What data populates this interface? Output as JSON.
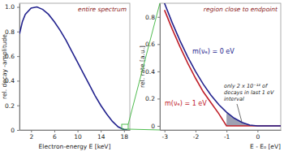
{
  "chart_data": [
    {
      "type": "line",
      "title": "entire spectrum",
      "x_label": "Electron-energy E [keV]",
      "y_label": "rel. decay -amplitude",
      "x": [
        0,
        0.5,
        1,
        2,
        3,
        4,
        5,
        6,
        7,
        8,
        9,
        10,
        11,
        12,
        13,
        14,
        15,
        16,
        17,
        18,
        18.6
      ],
      "values": [
        0.78,
        0.88,
        0.94,
        0.99,
        1.0,
        0.98,
        0.94,
        0.88,
        0.81,
        0.73,
        0.64,
        0.55,
        0.46,
        0.37,
        0.28,
        0.2,
        0.13,
        0.07,
        0.025,
        0.003,
        0
      ],
      "color": "#23238e",
      "xlim": [
        0,
        19
      ],
      "ylim": [
        0,
        1.03
      ],
      "xticks": [
        2,
        6,
        10,
        14,
        18
      ],
      "yticks": [
        0,
        0.2,
        0.4,
        0.6,
        0.8,
        {
          "value": 1,
          "label": "1.0"
        }
      ]
    },
    {
      "type": "line",
      "title": "region close to endpoint",
      "x_label": "E - E₀ [eV]",
      "y_label": "rel. rate [a.u.]",
      "series": [
        {
          "name": "m(νₑ) = 0 eV",
          "color": "#23238e",
          "x": [
            -3,
            -2.75,
            -2.5,
            -2.25,
            -2,
            -1.75,
            -1.5,
            -1.25,
            -1,
            -0.75,
            -0.5,
            -0.25,
            0,
            0.75
          ],
          "values": [
            0.9,
            0.756,
            0.625,
            0.506,
            0.4,
            0.306,
            0.225,
            0.156,
            0.1,
            0.056,
            0.025,
            0.006,
            0,
            0
          ]
        },
        {
          "name": "m(νₑ) = 1 eV",
          "color": "#c0202a",
          "x": [
            -3,
            -2.75,
            -2.5,
            -2.25,
            -2,
            -1.75,
            -1.5,
            -1.25,
            -1,
            0.75
          ],
          "values": [
            0.85,
            0.71,
            0.58,
            0.46,
            0.35,
            0.25,
            0.17,
            0.09,
            0,
            0
          ]
        }
      ],
      "shaded_interval": [
        -1,
        0
      ],
      "annotation": [
        "only 2 x 10⁻¹³ of",
        "decays in last 1 eV",
        "interval"
      ],
      "xlim": [
        -3.15,
        0.75
      ],
      "ylim": [
        -0.03,
        0.9
      ],
      "xticks": [
        -3,
        -2,
        -1,
        0
      ],
      "yticks": [
        0,
        0.2,
        0.4,
        0.6,
        0.8
      ]
    }
  ]
}
